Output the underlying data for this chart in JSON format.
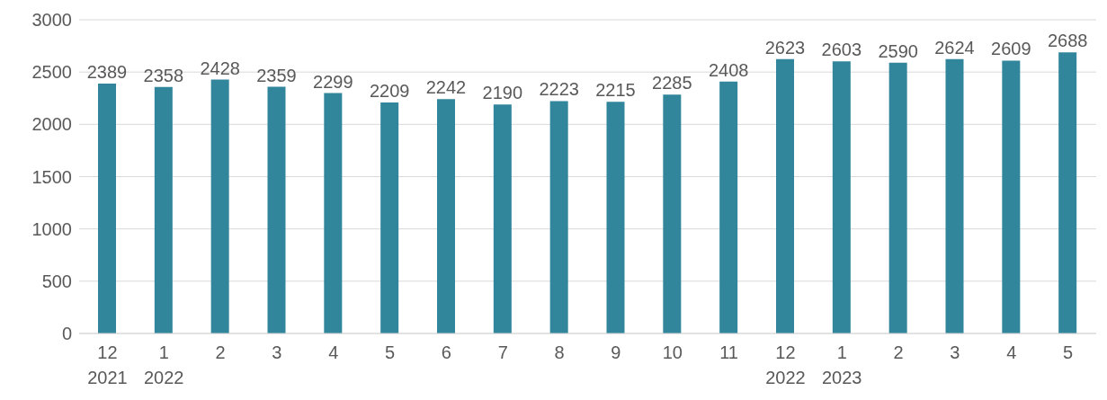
{
  "chart_data": {
    "type": "bar",
    "categories": [
      "12\n2021",
      "1\n2022",
      "2",
      "3",
      "4",
      "5",
      "6",
      "7",
      "8",
      "9",
      "10",
      "11",
      "12\n2022",
      "1\n2023",
      "2",
      "3",
      "4",
      "5"
    ],
    "values": [
      2389,
      2358,
      2428,
      2359,
      2299,
      2209,
      2242,
      2190,
      2223,
      2215,
      2285,
      2408,
      2623,
      2603,
      2590,
      2624,
      2609,
      2688
    ],
    "color": "#31869b",
    "ylim": [
      0,
      3000
    ],
    "yticks": [
      0,
      500,
      1000,
      1500,
      2000,
      2500,
      3000
    ],
    "grid": "y",
    "data_labels": true
  }
}
